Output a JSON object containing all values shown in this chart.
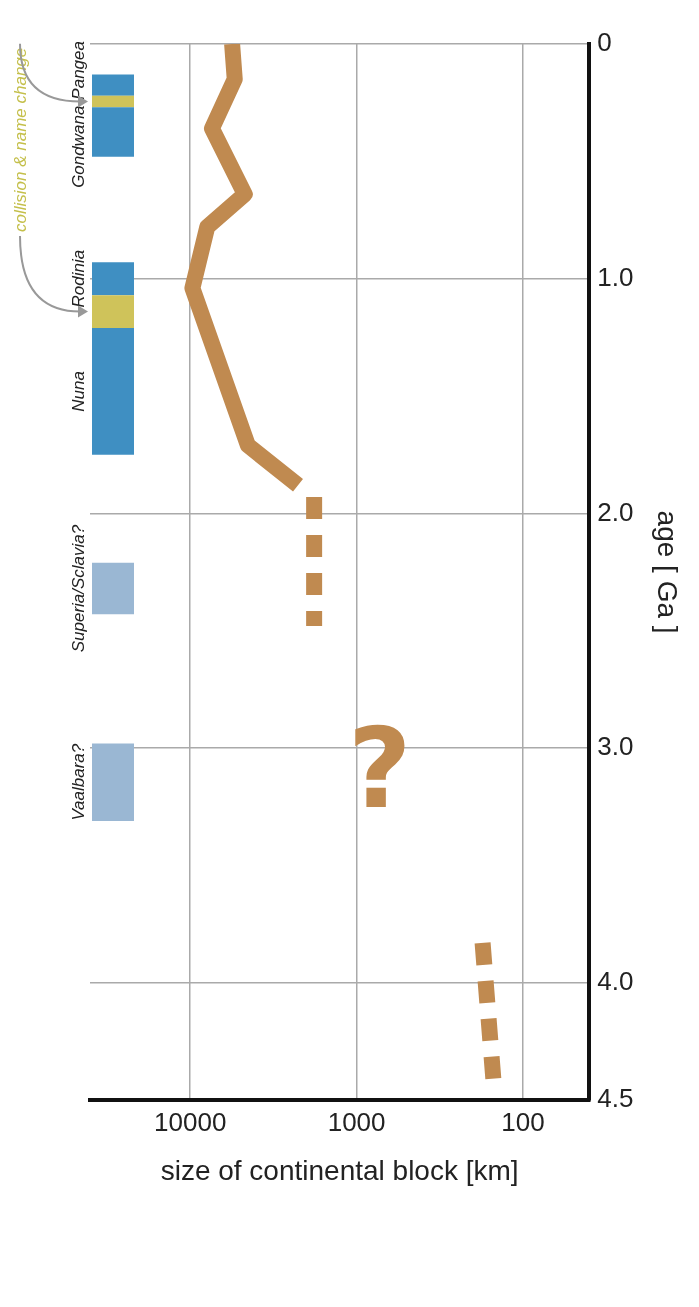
{
  "chart_data": {
    "type": "line",
    "xlabel": "size of continental block [km]",
    "ylabel": "age [ Ga ]",
    "xlim": [
      40000,
      40
    ],
    "xticks": [
      100,
      1000,
      10000
    ],
    "log": "x",
    "ylim": [
      4.5,
      0
    ],
    "yticks": [
      {
        "value": 4.5,
        "label": "4.5"
      },
      {
        "value": 4,
        "label": "4.0"
      },
      {
        "value": 3,
        "label": "3.0"
      },
      {
        "value": 2,
        "label": "2.0"
      },
      {
        "value": 1,
        "label": "1.0"
      },
      0
    ],
    "grid": true,
    "marker": "none",
    "series": [
      {
        "color": "#c08a50",
        "x": [
          5600,
          5400,
          7400,
          4700,
          7900,
          9700,
          4500,
          2250
        ],
        "values": [
          0,
          0.15,
          0.36,
          0.64,
          0.78,
          1.04,
          1.71,
          1.88
        ]
      },
      {
        "color": "#c08a50",
        "line_style": "dashed",
        "x": [
          1800,
          1800
        ],
        "values": [
          1.93,
          2.48
        ]
      },
      {
        "color": "#c08a50",
        "line_style": "dashed",
        "x": [
          175,
          150
        ],
        "values": [
          3.83,
          4.43
        ]
      }
    ],
    "bands": [
      {
        "axis": "y",
        "from": 0.13,
        "to": 0.22,
        "label": "Pangea",
        "color": "#3f8fc2"
      },
      {
        "axis": "y",
        "from": 0.22,
        "to": 0.27,
        "color": "#cfc35a"
      },
      {
        "axis": "y",
        "from": 0.27,
        "to": 0.48,
        "label": "Gondwana",
        "color": "#3f8fc2"
      },
      {
        "axis": "y",
        "from": 0.93,
        "to": 1.07,
        "label": "Rodinia",
        "color": "#3f8fc2"
      },
      {
        "axis": "y",
        "from": 1.07,
        "to": 1.21,
        "color": "#cfc35a"
      },
      {
        "axis": "y",
        "from": 1.21,
        "to": 1.75,
        "label": "Nuna",
        "color": "#3f8fc2"
      },
      {
        "axis": "y",
        "from": 2.21,
        "to": 2.43,
        "label": "Superia/Sclavia?",
        "color": "#9ab7d3"
      },
      {
        "axis": "y",
        "from": 2.98,
        "to": 3.31,
        "label": "Vaalbara?",
        "color": "#9ab7d3"
      }
    ],
    "annotations": [
      "collision & name change",
      "?"
    ]
  }
}
